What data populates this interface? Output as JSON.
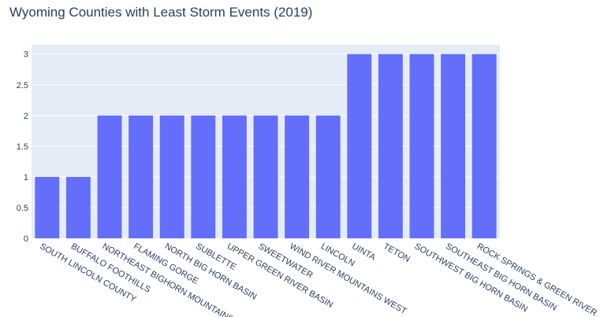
{
  "chart_data": {
    "type": "bar",
    "title": "Wyoming Counties with Least Storm Events (2019)",
    "xlabel": "",
    "ylabel": "",
    "categories": [
      "SOUTH LINCOLN COUNTY",
      "BUFFALO FOOTHILLS",
      "NORTHEAST BIGHORN MOUNTAINS",
      "FLAMING GORGE",
      "NORTH BIG HORN BASIN",
      "SUBLETTE",
      "UPPER GREEN RIVER BASIN",
      "SWEETWATER",
      "WIND RIVER MOUNTAINS WEST",
      "LINCOLN",
      "UINTA",
      "TETON",
      "SOUTHWEST BIG HORN BASIN",
      "SOUTHEAST BIG HORN BASIN",
      "ROCK SPRINGS & GREEN RIVER"
    ],
    "values": [
      1,
      1,
      2,
      2,
      2,
      2,
      2,
      2,
      2,
      2,
      3,
      3,
      3,
      3,
      3
    ],
    "ylim": [
      0,
      3.15
    ],
    "yticks": [
      0,
      0.5,
      1,
      1.5,
      2,
      2.5,
      3
    ],
    "ytick_labels": [
      "0",
      "0.5",
      "1",
      "1.5",
      "2",
      "2.5",
      "3"
    ],
    "grid": true,
    "colors": {
      "bar": "#636efa",
      "plot_background": "#e5ecf6",
      "gridline": "#ffffff",
      "text": "#2a3f5f"
    }
  }
}
